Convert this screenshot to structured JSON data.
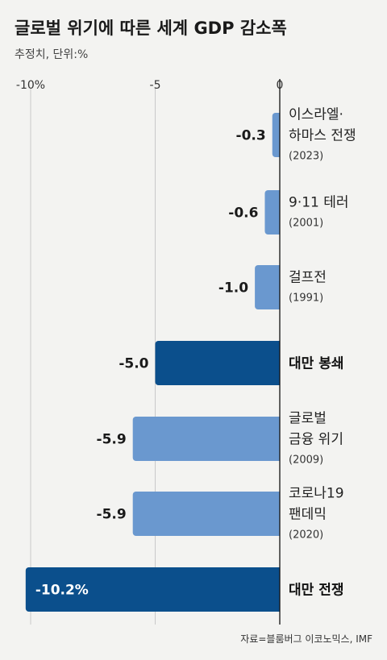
{
  "chart_data": {
    "type": "bar",
    "orientation": "horizontal",
    "title": "글로벌 위기에 따른 세계 GDP 감소폭",
    "subtitle": "추정치, 단위:%",
    "xlim": [
      -10.2,
      0
    ],
    "ticks": [
      {
        "value": -10,
        "label": "-10%"
      },
      {
        "value": -5,
        "label": "-5"
      },
      {
        "value": 0,
        "label": "0"
      }
    ],
    "categories": [
      {
        "lines": [
          "이스라엘·",
          "하마스 전쟁"
        ],
        "year": "(2023)",
        "emphasis": false
      },
      {
        "lines": [
          "9·11 테러"
        ],
        "year": "(2001)",
        "emphasis": false
      },
      {
        "lines": [
          "걸프전"
        ],
        "year": "(1991)",
        "emphasis": false
      },
      {
        "lines": [
          "대만 봉쇄"
        ],
        "year": "",
        "emphasis": true
      },
      {
        "lines": [
          "글로벌",
          "금융 위기"
        ],
        "year": "(2009)",
        "emphasis": false
      },
      {
        "lines": [
          "코로나19",
          "팬데믹"
        ],
        "year": "(2020)",
        "emphasis": false
      },
      {
        "lines": [
          "대만 전쟁"
        ],
        "year": "",
        "emphasis": true
      }
    ],
    "values": [
      -0.3,
      -0.6,
      -1.0,
      -5.0,
      -5.9,
      -5.9,
      -10.2
    ],
    "value_labels": [
      "-0.3",
      "-0.6",
      "-1.0",
      "-5.0",
      "-5.9",
      "-5.9",
      "-10.2%"
    ],
    "colors": {
      "normal": "#6a98cf",
      "emphasis": "#0b4f8c"
    },
    "grid": true,
    "source": "자료=블룸버그 이코노믹스, IMF"
  }
}
